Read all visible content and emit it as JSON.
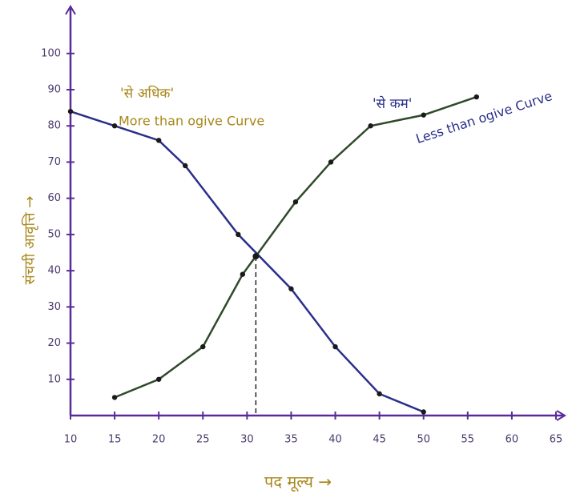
{
  "chart_data": {
    "type": "line",
    "xlabel": "पद मूल्य →",
    "ylabel": "संचयी आवृत्ति →",
    "xlim": [
      10,
      66
    ],
    "ylim": [
      0,
      113
    ],
    "xticks": [
      10,
      15,
      20,
      25,
      30,
      35,
      40,
      45,
      50,
      55,
      60,
      65
    ],
    "yticks": [
      10,
      20,
      30,
      40,
      50,
      60,
      70,
      80,
      90,
      100
    ],
    "series": [
      {
        "name": "More than ogive Curve",
        "label": "'से अधिक'",
        "color": "#2b2f8a",
        "x": [
          10,
          15,
          20,
          23,
          29,
          35,
          40,
          45,
          50
        ],
        "values": [
          84,
          80,
          76,
          69,
          50,
          35,
          19,
          6,
          1
        ]
      },
      {
        "name": "Less than ogive Curve",
        "label": "'से कम'",
        "color": "#2f4a2a",
        "x": [
          15,
          20,
          25,
          29.5,
          35.5,
          39.5,
          44,
          50,
          56
        ],
        "values": [
          5,
          10,
          19,
          39,
          59,
          70,
          80,
          83,
          88
        ]
      }
    ],
    "intersection": {
      "x": 31,
      "y": 44
    }
  }
}
